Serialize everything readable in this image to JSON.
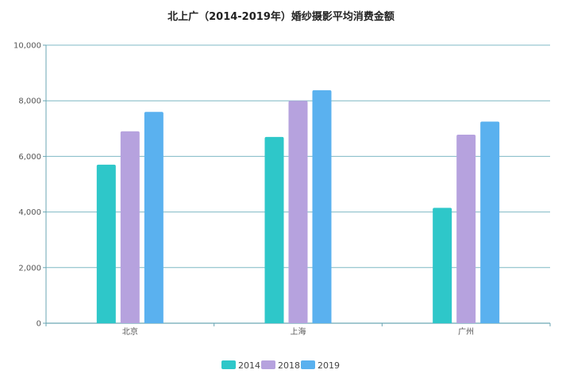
{
  "chart_data": {
    "type": "bar",
    "title": "北上广（2014-2019年）婚纱摄影平均消费金额",
    "xlabel": "",
    "ylabel": "",
    "categories": [
      "北京",
      "上海",
      "广州"
    ],
    "series": [
      {
        "name": "2014",
        "values": [
          5700,
          6700,
          4150
        ],
        "color": "#2ec7c9"
      },
      {
        "name": "2018",
        "values": [
          6900,
          8000,
          6780
        ],
        "color": "#b6a2de"
      },
      {
        "name": "2019",
        "values": [
          7600,
          8380,
          7250
        ],
        "color": "#5ab1ef"
      }
    ],
    "ylim": [
      0,
      10000
    ],
    "yticks": [
      "0",
      "2,000",
      "4,000",
      "6,000",
      "8,000",
      "10,000"
    ],
    "grid": true,
    "legend": "bottom-center"
  }
}
